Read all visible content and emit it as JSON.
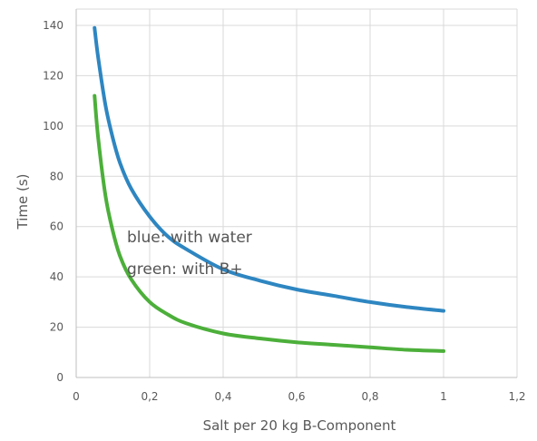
{
  "chart_data": {
    "type": "line",
    "xlabel": "Salt per 20 kg B-Component",
    "ylabel": "Time (s)",
    "xlim": [
      0,
      1.2
    ],
    "ylim": [
      0,
      140
    ],
    "x_ticks": [
      "0",
      "0,2",
      "0,4",
      "0,6",
      "0,8",
      "1",
      "1,2"
    ],
    "y_ticks": [
      "0",
      "20",
      "40",
      "60",
      "80",
      "100",
      "120",
      "140"
    ],
    "grid": true,
    "annotations": [
      "blue: with water",
      "green: with B+"
    ],
    "series": [
      {
        "color": "#2e86c1",
        "x": [
          0.05,
          0.06,
          0.08,
          0.1,
          0.12,
          0.15,
          0.2,
          0.25,
          0.3,
          0.4,
          0.5,
          0.6,
          0.7,
          0.8,
          0.9,
          1.0
        ],
        "y": [
          139,
          127,
          108,
          95,
          85,
          75,
          64,
          56,
          51,
          43,
          38.5,
          35,
          32.5,
          30,
          28,
          26.5
        ]
      },
      {
        "color": "#4caf3a",
        "x": [
          0.05,
          0.06,
          0.08,
          0.1,
          0.12,
          0.15,
          0.2,
          0.25,
          0.3,
          0.4,
          0.5,
          0.6,
          0.7,
          0.8,
          0.9,
          1.0
        ],
        "y": [
          112,
          95,
          72,
          58,
          48,
          39,
          30,
          25,
          21.5,
          17.5,
          15.5,
          14,
          13,
          12,
          11,
          10.5
        ]
      }
    ]
  }
}
